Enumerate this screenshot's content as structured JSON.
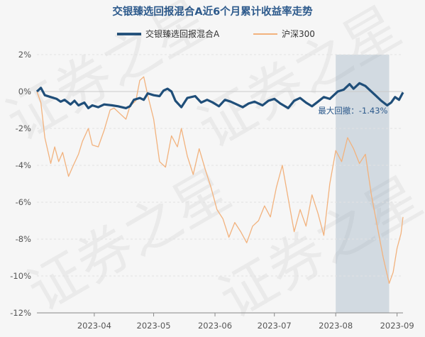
{
  "chart_data": {
    "type": "line",
    "title": "交银臻选回报混合A近6个月累计收益率走势",
    "xlabel": "",
    "ylabel": "",
    "ylim": [
      -12,
      2
    ],
    "yticks": [
      "2%",
      "0%",
      "-2%",
      "-4%",
      "-6%",
      "-8%",
      "-10%",
      "-12%"
    ],
    "ytick_values": [
      2,
      0,
      -2,
      -4,
      -6,
      -8,
      -10,
      -12
    ],
    "xticks": [
      "2023-04",
      "2023-05",
      "2023-06",
      "2023-07",
      "2023-08",
      "2023-09"
    ],
    "xtick_dates": [
      "2023-04-01",
      "2023-05-01",
      "2023-06-01",
      "2023-07-01",
      "2023-08-01",
      "2023-09-01"
    ],
    "x_start": "2023-03-03",
    "x_end": "2023-09-04",
    "grid": true,
    "legend_position": "top",
    "series": [
      {
        "name": "交银臻选回报混合A",
        "color": "#1f4e79",
        "points": [
          [
            "2023-03-03",
            0
          ],
          [
            "2023-03-05",
            0.2
          ],
          [
            "2023-03-07",
            -0.2
          ],
          [
            "2023-03-10",
            -0.3
          ],
          [
            "2023-03-13",
            -0.4
          ],
          [
            "2023-03-15",
            -0.55
          ],
          [
            "2023-03-17",
            -0.45
          ],
          [
            "2023-03-20",
            -0.7
          ],
          [
            "2023-03-22",
            -0.5
          ],
          [
            "2023-03-24",
            -0.75
          ],
          [
            "2023-03-27",
            -0.6
          ],
          [
            "2023-03-29",
            -0.9
          ],
          [
            "2023-03-31",
            -0.75
          ],
          [
            "2023-04-03",
            -0.85
          ],
          [
            "2023-04-06",
            -0.7
          ],
          [
            "2023-04-10",
            -0.75
          ],
          [
            "2023-04-13",
            -0.8
          ],
          [
            "2023-04-17",
            -0.9
          ],
          [
            "2023-04-19",
            -0.8
          ],
          [
            "2023-04-21",
            -0.45
          ],
          [
            "2023-04-24",
            -0.35
          ],
          [
            "2023-04-26",
            -0.45
          ],
          [
            "2023-04-28",
            -0.1
          ],
          [
            "2023-05-01",
            -0.2
          ],
          [
            "2023-05-04",
            -0.25
          ],
          [
            "2023-05-06",
            0.05
          ],
          [
            "2023-05-08",
            0.15
          ],
          [
            "2023-05-10",
            0
          ],
          [
            "2023-05-12",
            -0.5
          ],
          [
            "2023-05-15",
            -0.85
          ],
          [
            "2023-05-18",
            -0.35
          ],
          [
            "2023-05-22",
            -0.25
          ],
          [
            "2023-05-25",
            -0.6
          ],
          [
            "2023-05-28",
            -0.45
          ],
          [
            "2023-05-31",
            -0.6
          ],
          [
            "2023-06-03",
            -0.8
          ],
          [
            "2023-06-06",
            -0.45
          ],
          [
            "2023-06-09",
            -0.55
          ],
          [
            "2023-06-12",
            -0.7
          ],
          [
            "2023-06-15",
            -0.85
          ],
          [
            "2023-06-18",
            -0.65
          ],
          [
            "2023-06-21",
            -0.55
          ],
          [
            "2023-06-25",
            -0.75
          ],
          [
            "2023-06-28",
            -0.5
          ],
          [
            "2023-07-01",
            -0.4
          ],
          [
            "2023-07-04",
            -0.65
          ],
          [
            "2023-07-08",
            -0.9
          ],
          [
            "2023-07-11",
            -0.5
          ],
          [
            "2023-07-14",
            -0.35
          ],
          [
            "2023-07-17",
            -0.6
          ],
          [
            "2023-07-20",
            -0.8
          ],
          [
            "2023-07-23",
            -0.55
          ],
          [
            "2023-07-26",
            -0.3
          ],
          [
            "2023-07-29",
            -0.4
          ],
          [
            "2023-08-02",
            0
          ],
          [
            "2023-08-05",
            0.1
          ],
          [
            "2023-08-08",
            0.4
          ],
          [
            "2023-08-10",
            0.15
          ],
          [
            "2023-08-13",
            0.45
          ],
          [
            "2023-08-16",
            0.3
          ],
          [
            "2023-08-18",
            0.1
          ],
          [
            "2023-08-21",
            -0.2
          ],
          [
            "2023-08-24",
            -0.5
          ],
          [
            "2023-08-27",
            -0.75
          ],
          [
            "2023-08-29",
            -0.6
          ],
          [
            "2023-08-31",
            -0.3
          ],
          [
            "2023-09-02",
            -0.45
          ],
          [
            "2023-09-04",
            -0.05
          ]
        ]
      },
      {
        "name": "沪深300",
        "color": "#f2b27d",
        "points": [
          [
            "2023-03-03",
            0
          ],
          [
            "2023-03-05",
            -0.6
          ],
          [
            "2023-03-07",
            -2.5
          ],
          [
            "2023-03-10",
            -3.9
          ],
          [
            "2023-03-12",
            -3.0
          ],
          [
            "2023-03-14",
            -3.8
          ],
          [
            "2023-03-16",
            -3.3
          ],
          [
            "2023-03-19",
            -4.6
          ],
          [
            "2023-03-21",
            -4.1
          ],
          [
            "2023-03-24",
            -3.4
          ],
          [
            "2023-03-26",
            -2.7
          ],
          [
            "2023-03-29",
            -2.0
          ],
          [
            "2023-03-31",
            -2.9
          ],
          [
            "2023-04-03",
            -3.0
          ],
          [
            "2023-04-06",
            -2.1
          ],
          [
            "2023-04-09",
            -1.0
          ],
          [
            "2023-04-11",
            -0.9
          ],
          [
            "2023-04-14",
            -1.2
          ],
          [
            "2023-04-17",
            -1.5
          ],
          [
            "2023-04-19",
            -0.8
          ],
          [
            "2023-04-22",
            -0.5
          ],
          [
            "2023-04-24",
            0.6
          ],
          [
            "2023-04-26",
            0.8
          ],
          [
            "2023-04-28",
            -0.2
          ],
          [
            "2023-05-01",
            -1.5
          ],
          [
            "2023-05-04",
            -3.8
          ],
          [
            "2023-05-07",
            -4.1
          ],
          [
            "2023-05-10",
            -2.4
          ],
          [
            "2023-05-13",
            -3.0
          ],
          [
            "2023-05-15",
            -2.0
          ],
          [
            "2023-05-18",
            -3.5
          ],
          [
            "2023-05-21",
            -4.5
          ],
          [
            "2023-05-24",
            -3.1
          ],
          [
            "2023-05-27",
            -4.2
          ],
          [
            "2023-05-30",
            -5.2
          ],
          [
            "2023-06-02",
            -6.4
          ],
          [
            "2023-06-05",
            -6.9
          ],
          [
            "2023-06-08",
            -7.9
          ],
          [
            "2023-06-11",
            -7.1
          ],
          [
            "2023-06-14",
            -7.6
          ],
          [
            "2023-06-17",
            -8.2
          ],
          [
            "2023-06-20",
            -7.3
          ],
          [
            "2023-06-23",
            -7.0
          ],
          [
            "2023-06-26",
            -6.2
          ],
          [
            "2023-06-29",
            -6.8
          ],
          [
            "2023-07-02",
            -5.2
          ],
          [
            "2023-07-05",
            -4.0
          ],
          [
            "2023-07-08",
            -5.8
          ],
          [
            "2023-07-11",
            -7.6
          ],
          [
            "2023-07-14",
            -6.4
          ],
          [
            "2023-07-17",
            -7.3
          ],
          [
            "2023-07-20",
            -5.6
          ],
          [
            "2023-07-23",
            -6.6
          ],
          [
            "2023-07-26",
            -7.8
          ],
          [
            "2023-07-29",
            -5.0
          ],
          [
            "2023-08-01",
            -3.2
          ],
          [
            "2023-08-04",
            -3.8
          ],
          [
            "2023-08-07",
            -2.5
          ],
          [
            "2023-08-10",
            -3.1
          ],
          [
            "2023-08-13",
            -3.9
          ],
          [
            "2023-08-16",
            -3.4
          ],
          [
            "2023-08-19",
            -5.6
          ],
          [
            "2023-08-22",
            -7.3
          ],
          [
            "2023-08-25",
            -9.0
          ],
          [
            "2023-08-28",
            -10.4
          ],
          [
            "2023-08-30",
            -9.8
          ],
          [
            "2023-09-01",
            -8.5
          ],
          [
            "2023-09-03",
            -7.7
          ],
          [
            "2023-09-04",
            -6.8
          ]
        ]
      }
    ],
    "max_drawdown": {
      "label": "最大回撤：-1.43%",
      "start": "2023-08-01",
      "end": "2023-08-28"
    }
  },
  "watermark": "证券之星"
}
